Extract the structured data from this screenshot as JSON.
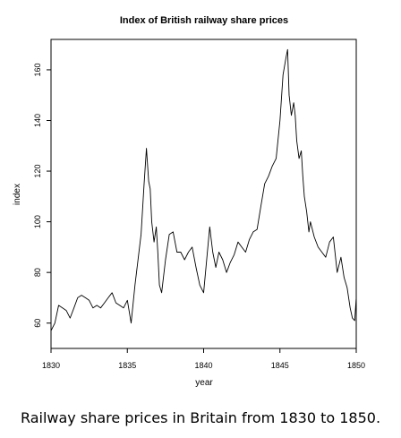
{
  "chart_data": {
    "type": "line",
    "title": "Index of British railway share prices",
    "xlabel": "year",
    "ylabel": "index",
    "xlim": [
      1830,
      1850
    ],
    "ylim": [
      50,
      172
    ],
    "xticks": [
      1830,
      1835,
      1840,
      1845,
      1850
    ],
    "yticks": [
      60,
      80,
      100,
      120,
      140,
      160
    ],
    "grid": false,
    "series": [
      {
        "x": [
          1830.0,
          1830.25,
          1830.5,
          1830.75,
          1831.0,
          1831.25,
          1831.5,
          1831.75,
          1832.0,
          1832.25,
          1832.5,
          1832.75,
          1833.0,
          1833.25,
          1833.5,
          1833.75,
          1834.0,
          1834.25,
          1834.5,
          1834.75,
          1835.0,
          1835.25,
          1835.5,
          1835.7,
          1835.9,
          1836.1,
          1836.25,
          1836.4,
          1836.5,
          1836.6,
          1836.75,
          1836.9,
          1837.0,
          1837.1,
          1837.25,
          1837.5,
          1837.75,
          1838.0,
          1838.25,
          1838.5,
          1838.75,
          1839.0,
          1839.25,
          1839.5,
          1839.75,
          1840.0,
          1840.2,
          1840.4,
          1840.6,
          1840.8,
          1841.0,
          1841.25,
          1841.5,
          1841.75,
          1842.0,
          1842.25,
          1842.5,
          1842.75,
          1843.0,
          1843.25,
          1843.5,
          1843.75,
          1844.0,
          1844.25,
          1844.5,
          1844.75,
          1845.0,
          1845.2,
          1845.4,
          1845.5,
          1845.6,
          1845.75,
          1845.9,
          1846.0,
          1846.1,
          1846.25,
          1846.4,
          1846.5,
          1846.6,
          1846.75,
          1846.9,
          1847.0,
          1847.25,
          1847.5,
          1847.75,
          1848.0,
          1848.25,
          1848.5,
          1848.75,
          1849.0,
          1849.2,
          1849.4,
          1849.6,
          1849.75,
          1849.9,
          1850.0
        ],
        "values": [
          57,
          60,
          67,
          66,
          65,
          62,
          66,
          70,
          71,
          70,
          69,
          66,
          67,
          66,
          68,
          70,
          72,
          68,
          67,
          66,
          69,
          60,
          75,
          85,
          95,
          115,
          129,
          116,
          113,
          100,
          92,
          98,
          88,
          75,
          72,
          85,
          95,
          96,
          88,
          88,
          85,
          88,
          90,
          82,
          75,
          72,
          85,
          98,
          88,
          82,
          88,
          85,
          80,
          84,
          87,
          92,
          90,
          88,
          93,
          96,
          97,
          106,
          115,
          118,
          122,
          125,
          140,
          158,
          165,
          168,
          150,
          142,
          147,
          142,
          132,
          125,
          128,
          118,
          110,
          104,
          96,
          100,
          94,
          90,
          88,
          86,
          92,
          94,
          80,
          86,
          78,
          74,
          66,
          62,
          61,
          70
        ]
      }
    ]
  },
  "caption": "Railway share prices in Britain from 1830 to 1850."
}
